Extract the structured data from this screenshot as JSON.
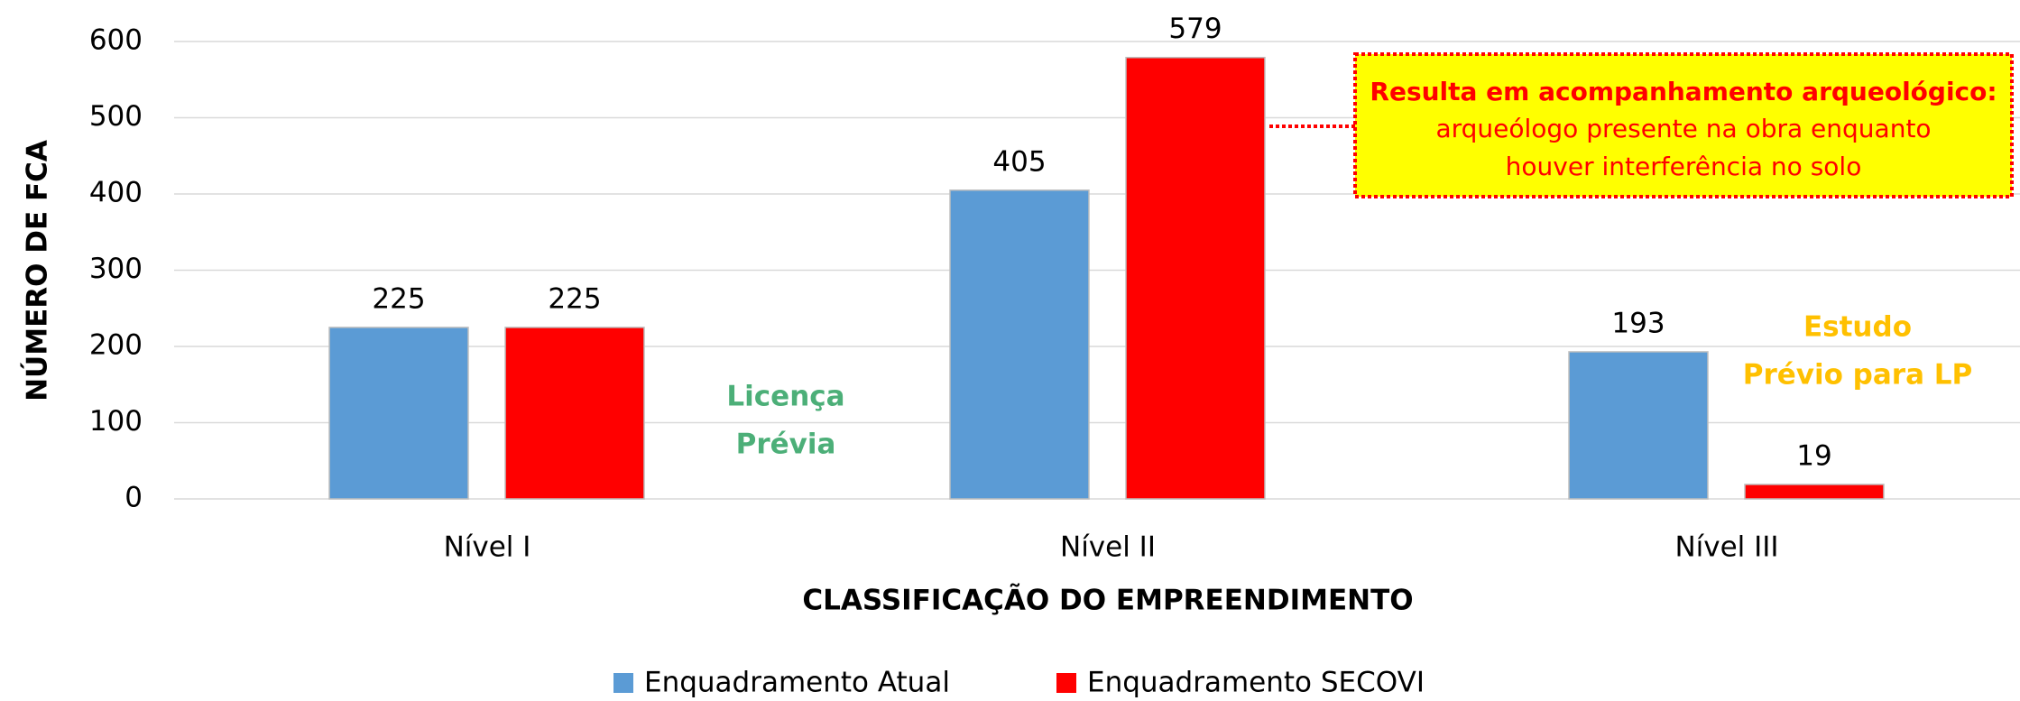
{
  "chart_data": {
    "type": "bar",
    "categories": [
      "Nível I",
      "Nível II",
      "Nível III"
    ],
    "series": [
      {
        "name": "Enquadramento Atual",
        "color": "#5b9bd5",
        "values": [
          225,
          405,
          193
        ]
      },
      {
        "name": "Enquadramento SECOVI",
        "color": "#ff0000",
        "values": [
          225,
          579,
          19
        ]
      }
    ],
    "ylim": [
      0,
      600
    ],
    "yticks": [
      0,
      100,
      200,
      300,
      400,
      500,
      600
    ],
    "grid": true,
    "y_label": "NÚMERO DE FCA",
    "x_label": "CLASSIFICAÇÃO DO EMPREENDIMENTO",
    "legend": "bottom",
    "annotations": [
      {
        "lines": [
          "Licença",
          "Prévia"
        ]
      },
      {
        "lines": [
          "Estudo",
          "Prévio para LP"
        ]
      },
      {
        "lines": [
          "Resulta em acompanhamento arqueológico:",
          "arqueólogo presente na obra enquanto",
          "houver interferência no solo"
        ]
      }
    ]
  }
}
